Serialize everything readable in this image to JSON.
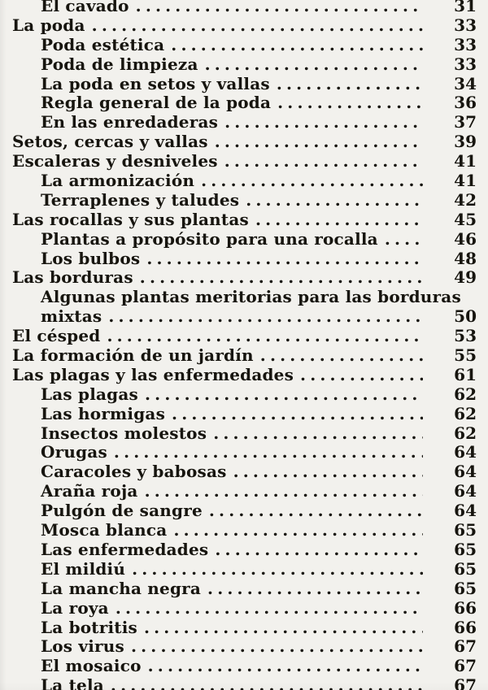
{
  "page": {
    "kind": "book-table-of-contents-scan",
    "language": "es",
    "background_color": "#f2f1ed",
    "text_color": "#17150f"
  },
  "toc": {
    "entries": [
      {
        "label": "El cavado",
        "page": "31",
        "indent": 1,
        "leader": true
      },
      {
        "label": "La poda",
        "page": "33",
        "indent": 0,
        "leader": true
      },
      {
        "label": "Poda estética",
        "page": "33",
        "indent": 1,
        "leader": true
      },
      {
        "label": "Poda de limpieza",
        "page": "33",
        "indent": 1,
        "leader": true
      },
      {
        "label": "La poda en setos y vallas",
        "page": "34",
        "indent": 1,
        "leader": true
      },
      {
        "label": "Regla general de la poda",
        "page": "36",
        "indent": 1,
        "leader": true
      },
      {
        "label": "En las enredaderas",
        "page": "37",
        "indent": 1,
        "leader": true
      },
      {
        "label": "Setos, cercas y vallas",
        "page": "39",
        "indent": 0,
        "leader": true
      },
      {
        "label": "Escaleras y desniveles",
        "page": "41",
        "indent": 0,
        "leader": true
      },
      {
        "label": "La armonización",
        "page": "41",
        "indent": 1,
        "leader": true
      },
      {
        "label": "Terraplenes y taludes",
        "page": "42",
        "indent": 1,
        "leader": true
      },
      {
        "label": "Las rocallas y sus plantas",
        "page": "45",
        "indent": 0,
        "leader": true
      },
      {
        "label": "Plantas a propósito para una rocalla",
        "page": "46",
        "indent": 1,
        "leader": true
      },
      {
        "label": "Los bulbos",
        "page": "48",
        "indent": 1,
        "leader": true
      },
      {
        "label": "Las borduras",
        "page": "49",
        "indent": 0,
        "leader": true
      },
      {
        "label": "Algunas plantas meritorias para las borduras",
        "page": null,
        "indent": 1,
        "leader": false
      },
      {
        "label": "mixtas",
        "page": "50",
        "indent": 1,
        "leader": true
      },
      {
        "label": "El césped",
        "page": "53",
        "indent": 0,
        "leader": true
      },
      {
        "label": "La formación de un jardín",
        "page": "55",
        "indent": 0,
        "leader": true
      },
      {
        "label": "Las plagas y las enfermedades",
        "page": "61",
        "indent": 0,
        "leader": true
      },
      {
        "label": "Las plagas",
        "page": "62",
        "indent": 1,
        "leader": true
      },
      {
        "label": "Las hormigas",
        "page": "62",
        "indent": 1,
        "leader": true
      },
      {
        "label": "Insectos molestos",
        "page": "62",
        "indent": 1,
        "leader": true
      },
      {
        "label": "Orugas",
        "page": "64",
        "indent": 1,
        "leader": true
      },
      {
        "label": "Caracoles y babosas",
        "page": "64",
        "indent": 1,
        "leader": true
      },
      {
        "label": "Araña roja",
        "page": "64",
        "indent": 1,
        "leader": true
      },
      {
        "label": "Pulgón de sangre",
        "page": "64",
        "indent": 1,
        "leader": true
      },
      {
        "label": "Mosca blanca",
        "page": "65",
        "indent": 1,
        "leader": true
      },
      {
        "label": "Las enfermedades",
        "page": "65",
        "indent": 1,
        "leader": true
      },
      {
        "label": "El mildiú",
        "page": "65",
        "indent": 1,
        "leader": true
      },
      {
        "label": "La mancha negra",
        "page": "65",
        "indent": 1,
        "leader": true
      },
      {
        "label": "La roya",
        "page": "66",
        "indent": 1,
        "leader": true
      },
      {
        "label": "La botritis",
        "page": "66",
        "indent": 1,
        "leader": true
      },
      {
        "label": "Los virus",
        "page": "67",
        "indent": 1,
        "leader": true
      },
      {
        "label": "El mosaico",
        "page": "67",
        "indent": 1,
        "leader": true
      },
      {
        "label": "La tela",
        "page": "67",
        "indent": 1,
        "leader": true
      }
    ]
  }
}
